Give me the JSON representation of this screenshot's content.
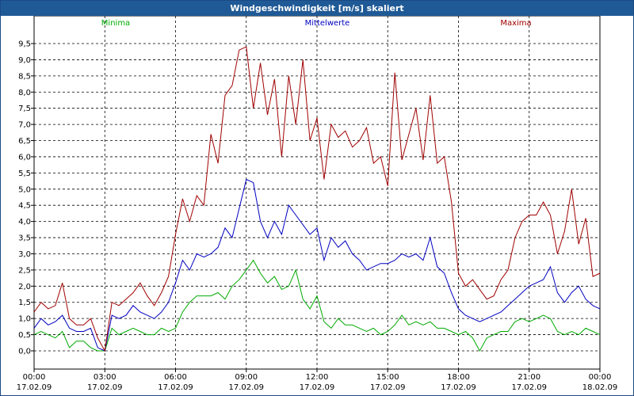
{
  "window": {
    "title": "Windgeschwindigkeit [m/s] skaliert"
  },
  "chart_data": {
    "type": "line",
    "title": "Windgeschwindigkeit [m/s] skaliert",
    "ylim": [
      -0.5,
      10.0
    ],
    "y_ticks": [
      "0,0",
      "0,5",
      "1,0",
      "1,5",
      "2,0",
      "2,5",
      "3,0",
      "3,5",
      "4,0",
      "4,5",
      "5,0",
      "5,5",
      "6,0",
      "6,5",
      "7,0",
      "7,5",
      "8,0",
      "8,5",
      "9,0",
      "9,5"
    ],
    "x_ticks": [
      {
        "hours": 0,
        "time": "00:00",
        "date": "17.02.09"
      },
      {
        "hours": 3,
        "time": "03:00",
        "date": "17.02.09"
      },
      {
        "hours": 6,
        "time": "06:00",
        "date": "17.02.09"
      },
      {
        "hours": 9,
        "time": "09:00",
        "date": "17.02.09"
      },
      {
        "hours": 12,
        "time": "12:00",
        "date": "17.02.09"
      },
      {
        "hours": 15,
        "time": "15:00",
        "date": "17.02.09"
      },
      {
        "hours": 18,
        "time": "18:00",
        "date": "17.02.09"
      },
      {
        "hours": 21,
        "time": "21:00",
        "date": "17.02.09"
      },
      {
        "hours": 24,
        "time": "00:00",
        "date": "18.02.09"
      }
    ],
    "grid": true,
    "series": [
      {
        "name": "Minima",
        "color": "#00aa00",
        "x_hours": [
          0,
          0.3,
          0.6,
          0.9,
          1.2,
          1.5,
          1.8,
          2.1,
          2.4,
          2.7,
          3.0,
          3.3,
          3.6,
          3.9,
          4.2,
          4.5,
          4.8,
          5.1,
          5.4,
          5.7,
          6.0,
          6.3,
          6.6,
          6.9,
          7.2,
          7.5,
          7.8,
          8.1,
          8.4,
          8.7,
          9.0,
          9.3,
          9.6,
          9.9,
          10.2,
          10.5,
          10.8,
          11.1,
          11.4,
          11.7,
          12.0,
          12.3,
          12.6,
          12.9,
          13.2,
          13.5,
          13.8,
          14.1,
          14.4,
          14.7,
          15.0,
          15.3,
          15.6,
          15.9,
          16.2,
          16.5,
          16.8,
          17.1,
          17.4,
          17.7,
          18.0,
          18.3,
          18.6,
          18.9,
          19.2,
          19.5,
          19.8,
          20.1,
          20.4,
          20.7,
          21.0,
          21.3,
          21.6,
          21.9,
          22.2,
          22.5,
          22.8,
          23.1,
          23.4,
          23.7,
          24.0
        ],
        "values": [
          0.5,
          0.6,
          0.5,
          0.4,
          0.6,
          0.1,
          0.3,
          0.3,
          0.1,
          0.0,
          0.0,
          0.7,
          0.5,
          0.6,
          0.7,
          0.6,
          0.5,
          0.5,
          0.7,
          0.6,
          0.7,
          1.2,
          1.5,
          1.7,
          1.7,
          1.7,
          1.8,
          1.6,
          2.0,
          2.2,
          2.5,
          2.8,
          2.4,
          2.1,
          2.3,
          1.9,
          2.0,
          2.5,
          1.6,
          1.3,
          1.7,
          0.9,
          0.7,
          1.0,
          0.8,
          0.8,
          0.7,
          0.6,
          0.7,
          0.5,
          0.6,
          0.8,
          1.1,
          0.8,
          0.9,
          0.8,
          0.9,
          0.7,
          0.7,
          0.6,
          0.5,
          0.6,
          0.4,
          0.0,
          0.4,
          0.5,
          0.6,
          0.6,
          0.9,
          1.0,
          0.9,
          1.0,
          1.1,
          1.0,
          0.6,
          0.5,
          0.6,
          0.5,
          0.7,
          0.6,
          0.5
        ]
      },
      {
        "name": "Mittelwerte",
        "color": "#0000c0",
        "x_hours": [
          0,
          0.3,
          0.6,
          0.9,
          1.2,
          1.5,
          1.8,
          2.1,
          2.4,
          2.7,
          3.0,
          3.3,
          3.6,
          3.9,
          4.2,
          4.5,
          4.8,
          5.1,
          5.4,
          5.7,
          6.0,
          6.3,
          6.6,
          6.9,
          7.2,
          7.5,
          7.8,
          8.1,
          8.4,
          8.7,
          9.0,
          9.3,
          9.6,
          9.9,
          10.2,
          10.5,
          10.8,
          11.1,
          11.4,
          11.7,
          12.0,
          12.3,
          12.6,
          12.9,
          13.2,
          13.5,
          13.8,
          14.1,
          14.4,
          14.7,
          15.0,
          15.3,
          15.6,
          15.9,
          16.2,
          16.5,
          16.8,
          17.1,
          17.4,
          17.7,
          18.0,
          18.3,
          18.6,
          18.9,
          19.2,
          19.5,
          19.8,
          20.1,
          20.4,
          20.7,
          21.0,
          21.3,
          21.6,
          21.9,
          22.2,
          22.5,
          22.8,
          23.1,
          23.4,
          23.7,
          24.0
        ],
        "values": [
          0.7,
          1.0,
          0.8,
          0.9,
          1.1,
          0.7,
          0.6,
          0.6,
          0.7,
          0.1,
          0.0,
          1.1,
          1.0,
          1.1,
          1.4,
          1.2,
          1.1,
          1.0,
          1.2,
          1.5,
          2.1,
          2.8,
          2.5,
          3.0,
          2.9,
          3.0,
          3.2,
          3.8,
          3.5,
          4.4,
          5.3,
          5.2,
          4.0,
          3.5,
          4.0,
          3.6,
          4.5,
          4.2,
          3.9,
          3.6,
          3.8,
          2.8,
          3.5,
          3.2,
          3.4,
          3.0,
          2.8,
          2.5,
          2.6,
          2.7,
          2.7,
          2.8,
          3.0,
          2.9,
          3.0,
          2.8,
          3.5,
          2.6,
          2.4,
          1.8,
          1.3,
          1.1,
          1.0,
          0.9,
          1.0,
          1.1,
          1.2,
          1.4,
          1.6,
          1.8,
          2.0,
          2.1,
          2.2,
          2.6,
          1.8,
          1.5,
          1.8,
          2.0,
          1.6,
          1.4,
          1.3
        ]
      },
      {
        "name": "Maxima",
        "color": "#a00000",
        "x_hours": [
          0,
          0.3,
          0.6,
          0.9,
          1.2,
          1.5,
          1.8,
          2.1,
          2.4,
          2.7,
          3.0,
          3.3,
          3.6,
          3.9,
          4.2,
          4.5,
          4.8,
          5.1,
          5.4,
          5.7,
          6.0,
          6.3,
          6.6,
          6.9,
          7.2,
          7.5,
          7.8,
          8.1,
          8.4,
          8.7,
          9.0,
          9.3,
          9.6,
          9.9,
          10.2,
          10.5,
          10.8,
          11.1,
          11.4,
          11.7,
          12.0,
          12.3,
          12.6,
          12.9,
          13.2,
          13.5,
          13.8,
          14.1,
          14.4,
          14.7,
          15.0,
          15.3,
          15.6,
          15.9,
          16.2,
          16.5,
          16.8,
          17.1,
          17.4,
          17.7,
          18.0,
          18.3,
          18.6,
          18.9,
          19.2,
          19.5,
          19.8,
          20.1,
          20.4,
          20.7,
          21.0,
          21.3,
          21.6,
          21.9,
          22.2,
          22.5,
          22.8,
          23.1,
          23.4,
          23.7,
          24.0
        ],
        "values": [
          1.2,
          1.5,
          1.3,
          1.4,
          2.1,
          1.0,
          0.8,
          0.8,
          1.0,
          0.4,
          0.0,
          1.5,
          1.4,
          1.6,
          1.8,
          2.1,
          1.7,
          1.4,
          1.8,
          2.3,
          3.6,
          4.7,
          4.0,
          4.8,
          4.5,
          6.7,
          5.8,
          7.9,
          8.2,
          9.3,
          9.4,
          7.5,
          8.9,
          7.3,
          8.4,
          6.0,
          8.5,
          7.0,
          9.0,
          6.5,
          7.2,
          5.3,
          7.0,
          6.6,
          6.8,
          6.3,
          6.5,
          6.9,
          5.8,
          6.0,
          5.1,
          8.6,
          5.9,
          6.7,
          7.5,
          5.9,
          7.9,
          5.8,
          6.0,
          4.6,
          2.4,
          2.0,
          2.2,
          1.9,
          1.6,
          1.7,
          2.2,
          2.5,
          3.5,
          4.0,
          4.2,
          4.2,
          4.6,
          4.2,
          3.0,
          3.7,
          5.0,
          3.3,
          4.1,
          2.3,
          2.4
        ]
      }
    ]
  }
}
